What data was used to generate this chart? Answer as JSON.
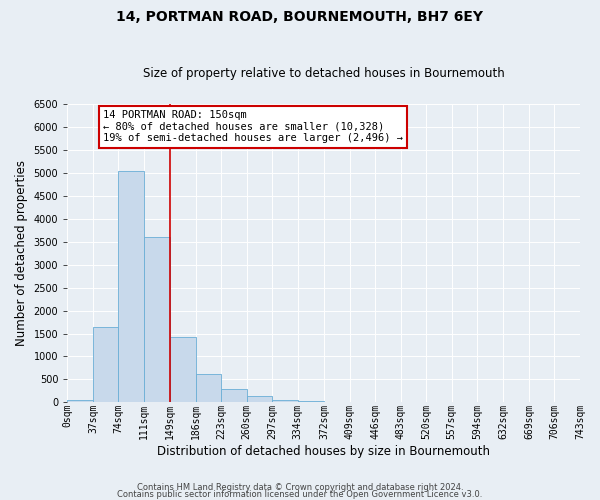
{
  "title": "14, PORTMAN ROAD, BOURNEMOUTH, BH7 6EY",
  "subtitle": "Size of property relative to detached houses in Bournemouth",
  "xlabel": "Distribution of detached houses by size in Bournemouth",
  "ylabel": "Number of detached properties",
  "bar_values": [
    60,
    1650,
    5050,
    3600,
    1420,
    620,
    295,
    140,
    50,
    30,
    0,
    0,
    0,
    0,
    0,
    0,
    0,
    0,
    0,
    0
  ],
  "bin_edges": [
    0,
    37,
    74,
    111,
    149,
    186,
    223,
    260,
    297,
    334,
    372,
    409,
    446,
    483,
    520,
    557,
    594,
    632,
    669,
    706,
    743
  ],
  "tick_labels": [
    "0sqm",
    "37sqm",
    "74sqm",
    "111sqm",
    "149sqm",
    "186sqm",
    "223sqm",
    "260sqm",
    "297sqm",
    "334sqm",
    "372sqm",
    "409sqm",
    "446sqm",
    "483sqm",
    "520sqm",
    "557sqm",
    "594sqm",
    "632sqm",
    "669sqm",
    "706sqm",
    "743sqm"
  ],
  "bar_color": "#c8d9eb",
  "bar_edge_color": "#6aaed6",
  "property_line_x": 149,
  "ylim": [
    0,
    6500
  ],
  "yticks": [
    0,
    500,
    1000,
    1500,
    2000,
    2500,
    3000,
    3500,
    4000,
    4500,
    5000,
    5500,
    6000,
    6500
  ],
  "annotation_title": "14 PORTMAN ROAD: 150sqm",
  "annotation_line1": "← 80% of detached houses are smaller (10,328)",
  "annotation_line2": "19% of semi-detached houses are larger (2,496) →",
  "annotation_box_color": "#ffffff",
  "annotation_box_edge": "#cc0000",
  "property_line_color": "#cc0000",
  "footer_line1": "Contains HM Land Registry data © Crown copyright and database right 2024.",
  "footer_line2": "Contains public sector information licensed under the Open Government Licence v3.0.",
  "background_color": "#e8eef4",
  "plot_background": "#e8eef4",
  "grid_color": "#ffffff",
  "title_fontsize": 10,
  "subtitle_fontsize": 8.5,
  "axis_label_fontsize": 8.5,
  "tick_fontsize": 7,
  "annotation_fontsize": 7.5,
  "footer_fontsize": 6
}
